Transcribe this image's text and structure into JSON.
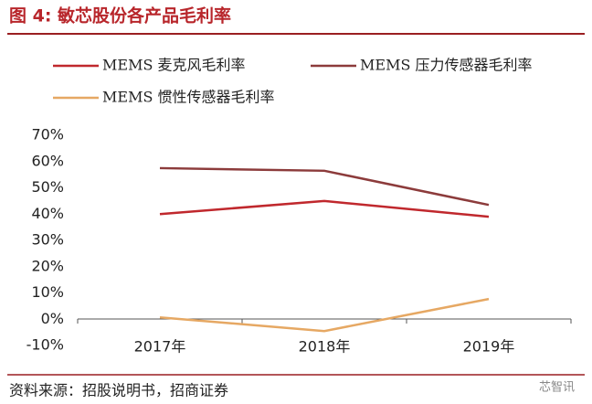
{
  "chart_data": {
    "type": "line",
    "title": "图 4: 敏芯股份各产品毛利率",
    "source": "资料来源：招股说明书，招商证券",
    "watermark": "芯智讯",
    "categories": [
      "2017年",
      "2018年",
      "2019年"
    ],
    "series": [
      {
        "name": "MEMS 麦克风毛利率",
        "color": "#c0282d",
        "values": [
          40,
          45,
          39
        ]
      },
      {
        "name": "MEMS 压力传感器毛利率",
        "color": "#8c3b3b",
        "values": [
          57.5,
          56.5,
          43.5
        ]
      },
      {
        "name": "MEMS 惯性传感器毛利率",
        "color": "#e6a863",
        "values": [
          0.7,
          -4.5,
          7.7
        ]
      }
    ],
    "ylim": [
      -10,
      70
    ],
    "yticks": [
      {
        "value": -10,
        "label": "-10%"
      },
      {
        "value": 0,
        "label": "0%"
      },
      {
        "value": 10,
        "label": "10%"
      },
      {
        "value": 20,
        "label": "20%"
      },
      {
        "value": 30,
        "label": "30%"
      },
      {
        "value": 40,
        "label": "40%"
      },
      {
        "value": 50,
        "label": "50%"
      },
      {
        "value": 60,
        "label": "60%"
      },
      {
        "value": 70,
        "label": "70%"
      }
    ],
    "grid": false
  }
}
